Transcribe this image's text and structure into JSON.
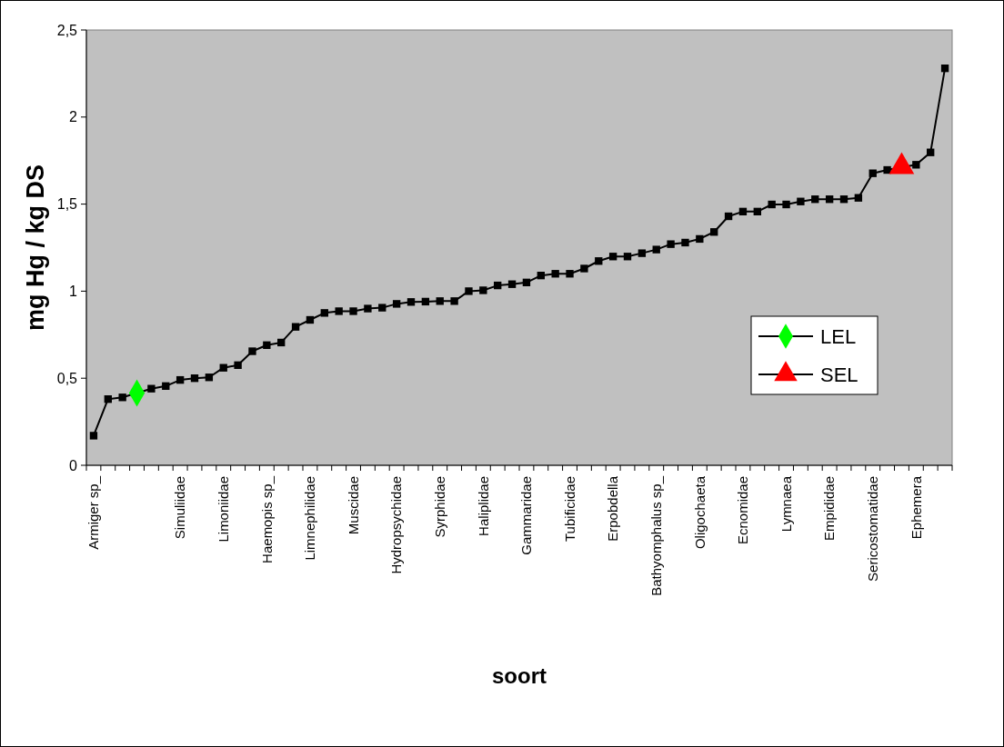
{
  "chart_data": {
    "type": "line",
    "xlabel": "soort",
    "ylabel": "mg Hg / kg DS",
    "categories": [
      "Armiger sp_",
      null,
      null,
      null,
      null,
      null,
      "Simuliidae",
      null,
      null,
      "Limoniidae",
      null,
      null,
      "Haemopis sp_",
      null,
      null,
      "Limnephilidae",
      null,
      null,
      "Muscidae",
      null,
      null,
      "Hydropsychidae",
      null,
      null,
      "Syrphidae",
      null,
      null,
      "Haliplidae",
      null,
      null,
      "Gammaridae",
      null,
      null,
      "Tubificidae",
      null,
      null,
      "Erpobdella",
      null,
      null,
      "Bathyomphalus sp_",
      null,
      null,
      "Oligochaeta",
      null,
      null,
      "Ecnomidae",
      null,
      null,
      "Lymnaea",
      null,
      null,
      "Empididae",
      null,
      null,
      "Sericostomatidae",
      null,
      null,
      "Ephemera",
      null,
      null
    ],
    "series": [
      {
        "color": "#000000",
        "marker": "square",
        "values": [
          0.17,
          0.38,
          0.39,
          null,
          0.44,
          0.455,
          0.49,
          0.5,
          0.505,
          0.56,
          0.575,
          0.655,
          0.69,
          0.705,
          0.795,
          0.835,
          0.875,
          0.885,
          0.885,
          0.9,
          0.905,
          0.927,
          0.938,
          0.94,
          0.943,
          0.943,
          1.0,
          1.005,
          1.033,
          1.04,
          1.05,
          1.09,
          1.1,
          1.1,
          1.13,
          1.173,
          1.199,
          1.199,
          1.218,
          1.239,
          1.27,
          1.279,
          1.3,
          1.34,
          1.43,
          1.457,
          1.457,
          1.498,
          1.498,
          1.515,
          1.528,
          1.528,
          1.528,
          1.536,
          1.677,
          1.696,
          null,
          1.726,
          1.797,
          2.28
        ]
      },
      {
        "name": "LEL",
        "color": "#00ff00",
        "marker": "diamond",
        "values": [
          null,
          null,
          null,
          0.415,
          null,
          null,
          null,
          null,
          null,
          null,
          null,
          null,
          null,
          null,
          null,
          null,
          null,
          null,
          null,
          null,
          null,
          null,
          null,
          null,
          null,
          null,
          null,
          null,
          null,
          null,
          null,
          null,
          null,
          null,
          null,
          null,
          null,
          null,
          null,
          null,
          null,
          null,
          null,
          null,
          null,
          null,
          null,
          null,
          null,
          null,
          null,
          null,
          null,
          null,
          null,
          null,
          null,
          null,
          null,
          null
        ]
      },
      {
        "name": "SEL",
        "color": "#ff0000",
        "marker": "triangle",
        "values": [
          null,
          null,
          null,
          null,
          null,
          null,
          null,
          null,
          null,
          null,
          null,
          null,
          null,
          null,
          null,
          null,
          null,
          null,
          null,
          null,
          null,
          null,
          null,
          null,
          null,
          null,
          null,
          null,
          null,
          null,
          null,
          null,
          null,
          null,
          null,
          null,
          null,
          null,
          null,
          null,
          null,
          null,
          null,
          null,
          null,
          null,
          null,
          null,
          null,
          null,
          null,
          null,
          null,
          null,
          null,
          null,
          1.715,
          null,
          null,
          null
        ]
      }
    ],
    "ylim": [
      0,
      2.5
    ],
    "yticks": [
      0,
      {
        "value": 0.5,
        "label": "0,5"
      },
      1,
      {
        "value": 1.5,
        "label": "1,5"
      },
      2,
      {
        "value": 2.5,
        "label": "2,5"
      }
    ],
    "grid": false,
    "legend": "right",
    "line_style": "solid"
  }
}
